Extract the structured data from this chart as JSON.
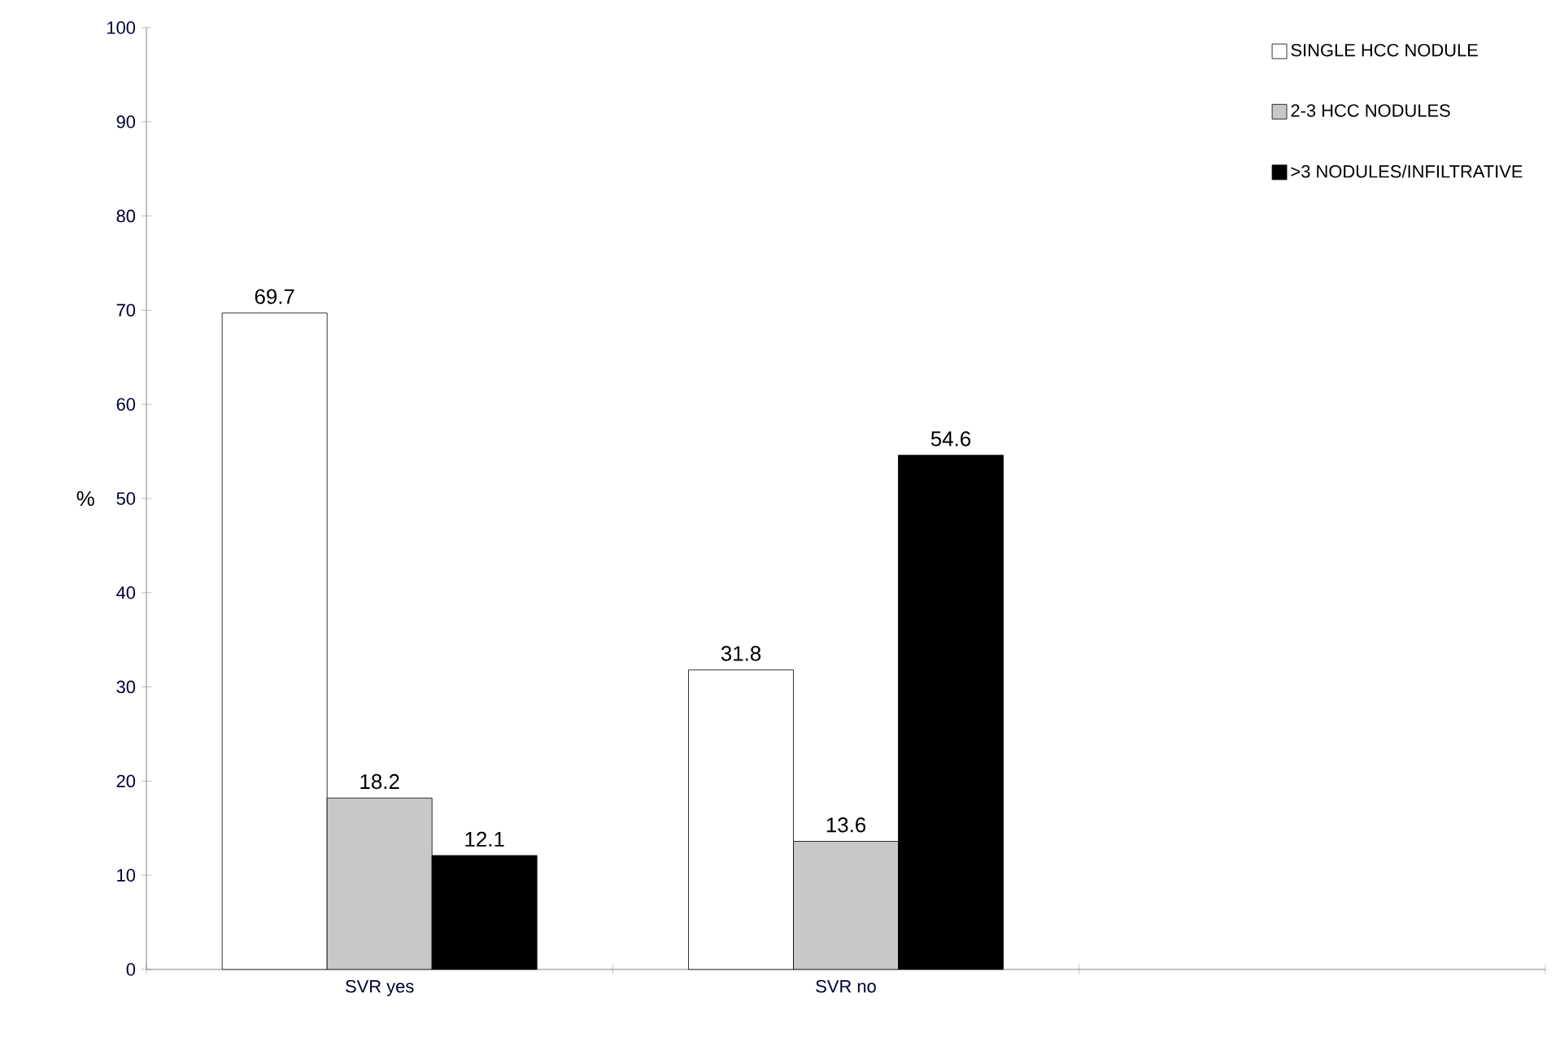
{
  "chart_data": {
    "type": "bar",
    "ylabel": "%",
    "categories": [
      "SVR yes",
      "SVR no",
      null
    ],
    "series": [
      {
        "name": "SINGLE HCC NODULE",
        "color": "#ffffff",
        "values": [
          69.7,
          31.8,
          null
        ]
      },
      {
        "name": "2-3 HCC NODULES",
        "color": "#c8c8c8",
        "values": [
          18.2,
          13.6,
          null
        ]
      },
      {
        "name": ">3 NODULES/INFILTRATIVE",
        "color": "#000000",
        "values": [
          12.1,
          54.6,
          null
        ]
      }
    ],
    "ylim": [
      0,
      100
    ],
    "yticks": [
      0,
      10,
      20,
      30,
      40,
      50,
      60,
      70,
      80,
      90,
      100
    ],
    "data_labels": true,
    "legend": "top right",
    "grid": false
  }
}
